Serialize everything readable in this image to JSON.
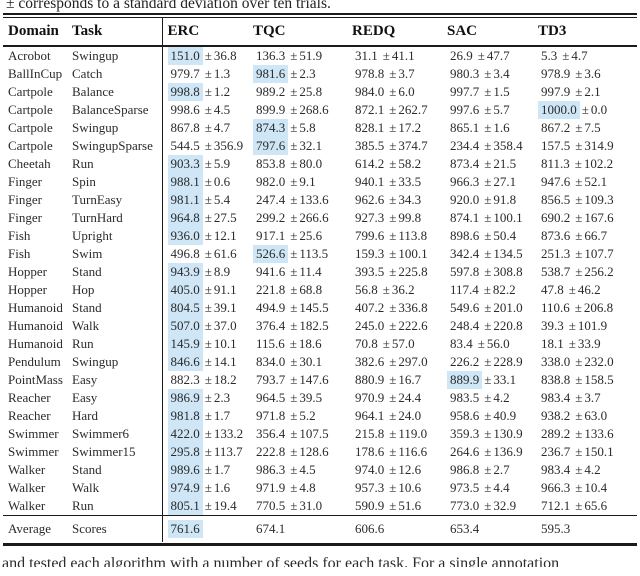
{
  "caption_top": "± corresponds to a standard deviation over ten trials.",
  "bottom_partial_text": "and tested each algorithm with a number of seeds for each task. For a single annotation",
  "table": {
    "columns": [
      "Domain",
      "Task",
      "ERC",
      "TQC",
      "REDQ",
      "SAC",
      "TD3"
    ],
    "highlight_color": "#cee6f5",
    "plus_minus": "±",
    "rows": [
      {
        "domain": "Acrobot",
        "task": "Swingup",
        "values": [
          [
            "151.0",
            "36.8",
            true
          ],
          [
            "136.3",
            "51.9",
            false
          ],
          [
            "31.1",
            "41.1",
            false
          ],
          [
            "26.9",
            "47.7",
            false
          ],
          [
            "5.3",
            "4.7",
            false
          ]
        ]
      },
      {
        "domain": "BallInCup",
        "task": "Catch",
        "values": [
          [
            "979.7",
            "1.3",
            false
          ],
          [
            "981.6",
            "2.3",
            true
          ],
          [
            "978.8",
            "3.7",
            false
          ],
          [
            "980.3",
            "3.4",
            false
          ],
          [
            "978.9",
            "3.6",
            false
          ]
        ]
      },
      {
        "domain": "Cartpole",
        "task": "Balance",
        "values": [
          [
            "998.8",
            "1.2",
            true
          ],
          [
            "989.2",
            "25.8",
            false
          ],
          [
            "984.0",
            "6.0",
            false
          ],
          [
            "997.7",
            "1.5",
            false
          ],
          [
            "997.9",
            "2.1",
            false
          ]
        ]
      },
      {
        "domain": "Cartpole",
        "task": "BalanceSparse",
        "values": [
          [
            "998.6",
            "4.5",
            false
          ],
          [
            "899.9",
            "268.6",
            false
          ],
          [
            "872.1",
            "262.7",
            false
          ],
          [
            "997.6",
            "5.7",
            false
          ],
          [
            "1000.0",
            "0.0",
            true
          ]
        ]
      },
      {
        "domain": "Cartpole",
        "task": "Swingup",
        "values": [
          [
            "867.8",
            "4.7",
            false
          ],
          [
            "874.3",
            "5.8",
            true
          ],
          [
            "828.1",
            "17.2",
            false
          ],
          [
            "865.1",
            "1.6",
            false
          ],
          [
            "867.2",
            "7.5",
            false
          ]
        ]
      },
      {
        "domain": "Cartpole",
        "task": "SwingupSparse",
        "values": [
          [
            "544.5",
            "356.9",
            false
          ],
          [
            "797.6",
            "32.1",
            true
          ],
          [
            "385.5",
            "374.7",
            false
          ],
          [
            "234.4",
            "358.4",
            false
          ],
          [
            "157.5",
            "314.9",
            false
          ]
        ]
      },
      {
        "domain": "Cheetah",
        "task": "Run",
        "values": [
          [
            "903.3",
            "5.9",
            true
          ],
          [
            "853.8",
            "80.0",
            false
          ],
          [
            "614.2",
            "58.2",
            false
          ],
          [
            "873.4",
            "21.5",
            false
          ],
          [
            "811.3",
            "102.2",
            false
          ]
        ]
      },
      {
        "domain": "Finger",
        "task": "Spin",
        "values": [
          [
            "988.1",
            "0.6",
            true
          ],
          [
            "982.0",
            "9.1",
            false
          ],
          [
            "940.1",
            "33.5",
            false
          ],
          [
            "966.3",
            "27.1",
            false
          ],
          [
            "947.6",
            "52.1",
            false
          ]
        ]
      },
      {
        "domain": "Finger",
        "task": "TurnEasy",
        "values": [
          [
            "981.1",
            "5.4",
            true
          ],
          [
            "247.4",
            "133.6",
            false
          ],
          [
            "962.6",
            "34.3",
            false
          ],
          [
            "920.0",
            "91.8",
            false
          ],
          [
            "856.5",
            "109.3",
            false
          ]
        ]
      },
      {
        "domain": "Finger",
        "task": "TurnHard",
        "values": [
          [
            "964.8",
            "27.5",
            true
          ],
          [
            "299.2",
            "266.6",
            false
          ],
          [
            "927.3",
            "99.8",
            false
          ],
          [
            "874.1",
            "100.1",
            false
          ],
          [
            "690.2",
            "167.6",
            false
          ]
        ]
      },
      {
        "domain": "Fish",
        "task": "Upright",
        "values": [
          [
            "936.0",
            "12.1",
            true
          ],
          [
            "917.1",
            "25.6",
            false
          ],
          [
            "799.6",
            "113.8",
            false
          ],
          [
            "898.6",
            "50.4",
            false
          ],
          [
            "873.6",
            "66.7",
            false
          ]
        ]
      },
      {
        "domain": "Fish",
        "task": "Swim",
        "values": [
          [
            "496.8",
            "61.6",
            false
          ],
          [
            "526.6",
            "113.5",
            true
          ],
          [
            "159.3",
            "100.1",
            false
          ],
          [
            "342.4",
            "134.5",
            false
          ],
          [
            "251.3",
            "107.7",
            false
          ]
        ]
      },
      {
        "domain": "Hopper",
        "task": "Stand",
        "values": [
          [
            "943.9",
            "8.9",
            true
          ],
          [
            "941.6",
            "11.4",
            false
          ],
          [
            "393.5",
            "225.8",
            false
          ],
          [
            "597.8",
            "308.8",
            false
          ],
          [
            "538.7",
            "256.2",
            false
          ]
        ]
      },
      {
        "domain": "Hopper",
        "task": "Hop",
        "values": [
          [
            "405.0",
            "91.1",
            true
          ],
          [
            "221.8",
            "68.8",
            false
          ],
          [
            "56.8",
            "36.2",
            false
          ],
          [
            "117.4",
            "82.2",
            false
          ],
          [
            "47.8",
            "46.2",
            false
          ]
        ]
      },
      {
        "domain": "Humanoid",
        "task": "Stand",
        "values": [
          [
            "804.5",
            "39.1",
            true
          ],
          [
            "494.9",
            "145.5",
            false
          ],
          [
            "407.2",
            "336.8",
            false
          ],
          [
            "549.6",
            "201.0",
            false
          ],
          [
            "110.6",
            "206.8",
            false
          ]
        ]
      },
      {
        "domain": "Humanoid",
        "task": "Walk",
        "values": [
          [
            "507.0",
            "37.0",
            true
          ],
          [
            "376.4",
            "182.5",
            false
          ],
          [
            "245.0",
            "222.6",
            false
          ],
          [
            "248.4",
            "220.8",
            false
          ],
          [
            "39.3",
            "101.9",
            false
          ]
        ]
      },
      {
        "domain": "Humanoid",
        "task": "Run",
        "values": [
          [
            "145.9",
            "10.1",
            true
          ],
          [
            "115.6",
            "18.6",
            false
          ],
          [
            "70.8",
            "57.0",
            false
          ],
          [
            "83.4",
            "56.0",
            false
          ],
          [
            "18.1",
            "33.9",
            false
          ]
        ]
      },
      {
        "domain": "Pendulum",
        "task": "Swingup",
        "values": [
          [
            "846.6",
            "14.1",
            true
          ],
          [
            "834.0",
            "30.1",
            false
          ],
          [
            "382.6",
            "297.0",
            false
          ],
          [
            "226.2",
            "228.9",
            false
          ],
          [
            "338.0",
            "232.0",
            false
          ]
        ]
      },
      {
        "domain": "PointMass",
        "task": "Easy",
        "values": [
          [
            "882.3",
            "18.2",
            false
          ],
          [
            "793.7",
            "147.6",
            false
          ],
          [
            "880.9",
            "16.7",
            false
          ],
          [
            "889.9",
            "33.1",
            true
          ],
          [
            "838.8",
            "158.5",
            false
          ]
        ]
      },
      {
        "domain": "Reacher",
        "task": "Easy",
        "values": [
          [
            "986.9",
            "2.3",
            true
          ],
          [
            "964.5",
            "39.5",
            false
          ],
          [
            "970.9",
            "24.4",
            false
          ],
          [
            "983.5",
            "4.2",
            false
          ],
          [
            "983.4",
            "3.7",
            false
          ]
        ]
      },
      {
        "domain": "Reacher",
        "task": "Hard",
        "values": [
          [
            "981.8",
            "1.7",
            true
          ],
          [
            "971.8",
            "5.2",
            false
          ],
          [
            "964.1",
            "24.0",
            false
          ],
          [
            "958.6",
            "40.9",
            false
          ],
          [
            "938.2",
            "63.0",
            false
          ]
        ]
      },
      {
        "domain": "Swimmer",
        "task": "Swimmer6",
        "values": [
          [
            "422.0",
            "133.2",
            true
          ],
          [
            "356.4",
            "107.5",
            false
          ],
          [
            "215.8",
            "119.0",
            false
          ],
          [
            "359.3",
            "130.9",
            false
          ],
          [
            "289.2",
            "133.6",
            false
          ]
        ]
      },
      {
        "domain": "Swimmer",
        "task": "Swimmer15",
        "values": [
          [
            "295.8",
            "113.7",
            true
          ],
          [
            "222.8",
            "128.6",
            false
          ],
          [
            "178.6",
            "116.6",
            false
          ],
          [
            "264.6",
            "136.9",
            false
          ],
          [
            "236.7",
            "150.1",
            false
          ]
        ]
      },
      {
        "domain": "Walker",
        "task": "Stand",
        "values": [
          [
            "989.6",
            "1.7",
            true
          ],
          [
            "986.3",
            "4.5",
            false
          ],
          [
            "974.0",
            "12.6",
            false
          ],
          [
            "986.8",
            "2.7",
            false
          ],
          [
            "983.4",
            "4.2",
            false
          ]
        ]
      },
      {
        "domain": "Walker",
        "task": "Walk",
        "values": [
          [
            "974.9",
            "1.6",
            true
          ],
          [
            "971.9",
            "4.8",
            false
          ],
          [
            "957.3",
            "10.6",
            false
          ],
          [
            "973.5",
            "4.4",
            false
          ],
          [
            "966.3",
            "10.4",
            false
          ]
        ]
      },
      {
        "domain": "Walker",
        "task": "Run",
        "values": [
          [
            "805.1",
            "19.4",
            true
          ],
          [
            "770.5",
            "31.0",
            false
          ],
          [
            "590.9",
            "51.6",
            false
          ],
          [
            "773.0",
            "32.9",
            false
          ],
          [
            "712.1",
            "65.6",
            false
          ]
        ]
      }
    ],
    "average": {
      "domain": "Average",
      "task": "Scores",
      "values": [
        [
          "761.6",
          null,
          true
        ],
        [
          "674.1",
          null,
          false
        ],
        [
          "606.6",
          null,
          false
        ],
        [
          "653.4",
          null,
          false
        ],
        [
          "595.3",
          null,
          false
        ]
      ]
    }
  }
}
